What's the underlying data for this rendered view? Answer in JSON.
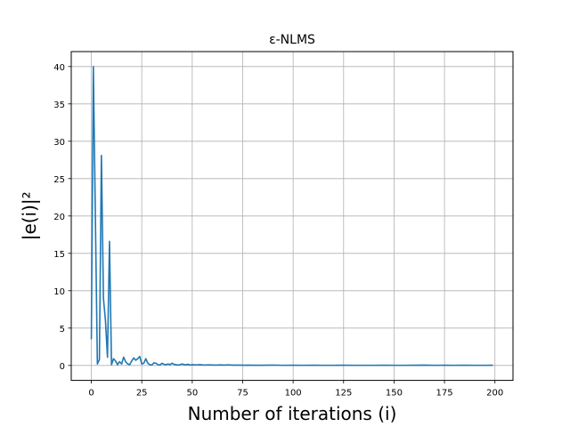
{
  "chart_data": {
    "type": "line",
    "title": "ε-NLMS",
    "xlabel": "Number of iterations (i)",
    "ylabel": "|e(i)|²",
    "xlim": [
      -9.95,
      208.95
    ],
    "ylim": [
      -2.0,
      42.0
    ],
    "xticks": [
      0,
      25,
      50,
      75,
      100,
      125,
      150,
      175,
      200
    ],
    "yticks": [
      0,
      5,
      10,
      15,
      20,
      25,
      30,
      35,
      40
    ],
    "grid": true,
    "line_color": "#1f77b4",
    "series": [
      {
        "x": [
          0,
          1,
          2,
          3,
          4,
          5,
          6,
          7,
          8,
          9,
          10,
          11,
          12,
          13,
          14,
          15,
          16,
          17,
          18,
          19,
          20,
          21,
          22,
          23,
          24,
          25,
          26,
          27,
          28,
          29,
          30,
          31,
          32,
          33,
          34,
          35,
          36,
          37,
          38,
          39,
          40,
          41,
          42,
          43,
          44,
          45,
          46,
          47,
          48,
          49,
          50,
          52,
          54,
          56,
          58,
          60,
          62,
          64,
          66,
          68,
          70,
          72,
          74,
          76,
          78,
          80,
          85,
          90,
          95,
          100,
          105,
          110,
          115,
          120,
          125,
          130,
          135,
          140,
          145,
          150,
          155,
          160,
          165,
          170,
          175,
          180,
          185,
          190,
          195,
          199
        ],
        "y": [
          3.5,
          40.0,
          20.0,
          0.2,
          0.8,
          28.1,
          9.0,
          6.0,
          1.1,
          16.6,
          0.1,
          0.9,
          0.6,
          0.1,
          0.5,
          0.2,
          1.1,
          0.5,
          0.2,
          0.1,
          0.6,
          1.0,
          0.7,
          0.9,
          1.2,
          0.2,
          0.3,
          0.9,
          0.3,
          0.1,
          0.05,
          0.35,
          0.3,
          0.1,
          0.05,
          0.3,
          0.15,
          0.1,
          0.2,
          0.1,
          0.3,
          0.15,
          0.1,
          0.05,
          0.1,
          0.2,
          0.1,
          0.1,
          0.15,
          0.05,
          0.1,
          0.08,
          0.1,
          0.05,
          0.08,
          0.06,
          0.05,
          0.07,
          0.05,
          0.08,
          0.04,
          0.05,
          0.04,
          0.03,
          0.04,
          0.03,
          0.03,
          0.05,
          0.02,
          0.03,
          0.02,
          0.03,
          0.02,
          0.02,
          0.03,
          0.02,
          0.02,
          0.02,
          0.03,
          0.02,
          0.02,
          0.03,
          0.04,
          0.02,
          0.03,
          0.02,
          0.03,
          0.02,
          0.02,
          0.03
        ]
      }
    ]
  }
}
